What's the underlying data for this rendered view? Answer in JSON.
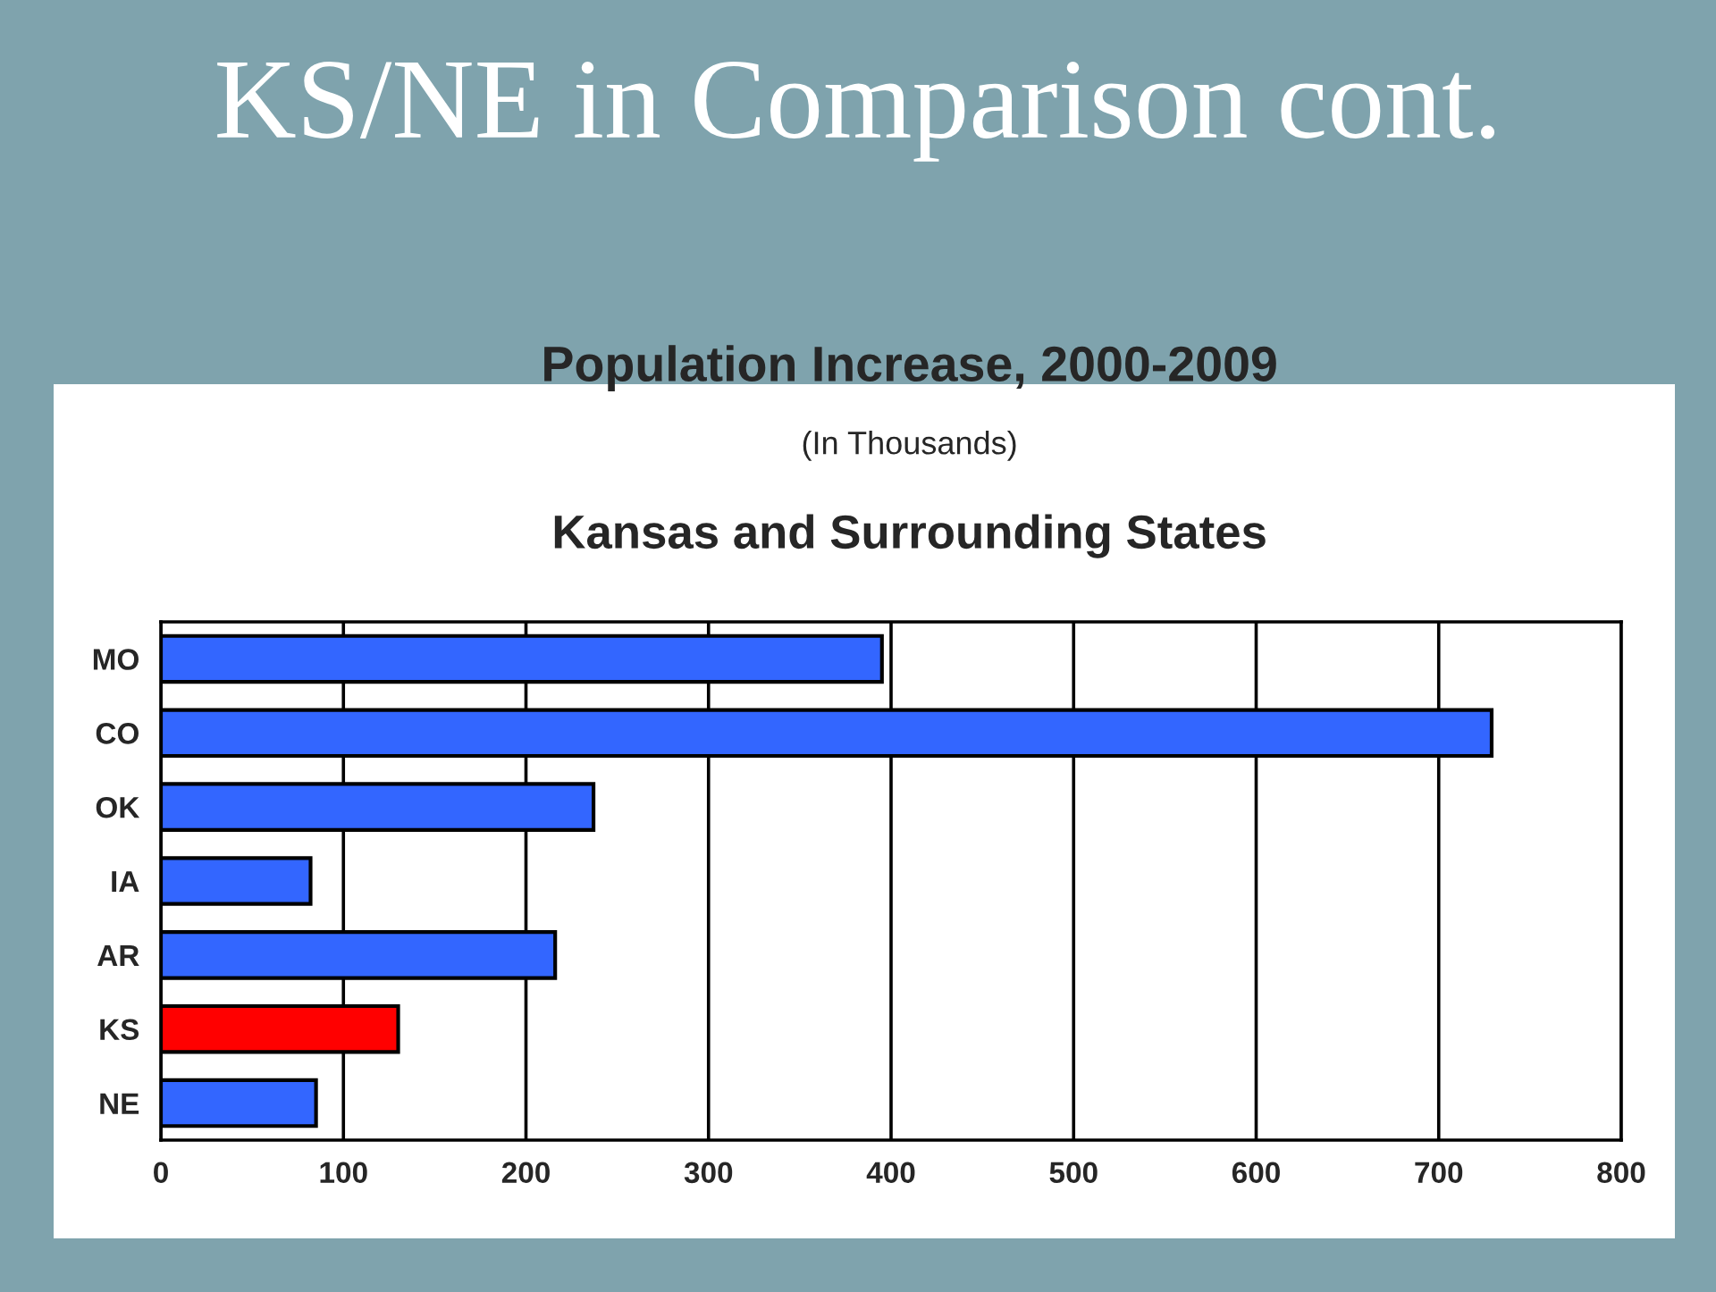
{
  "chart_data": {
    "type": "bar",
    "orientation": "horizontal",
    "title": "KS/NE in Comparison cont.",
    "subtitle": "Population Increase, 2000-2009",
    "annotations": [
      "(In Thousands)",
      "Kansas and Surrounding States"
    ],
    "categories": [
      "MO",
      "CO",
      "OK",
      "IA",
      "AR",
      "KS",
      "NE"
    ],
    "values": [
      395,
      729,
      237,
      82,
      216,
      130,
      85
    ],
    "colors": [
      "#3366ff",
      "#3366ff",
      "#3366ff",
      "#3366ff",
      "#3366ff",
      "#ff0000",
      "#3366ff"
    ],
    "xlim": [
      0,
      800
    ],
    "xticks": [
      0,
      100,
      200,
      300,
      400,
      500,
      600,
      700,
      800
    ],
    "grid": "x",
    "legend": false
  }
}
